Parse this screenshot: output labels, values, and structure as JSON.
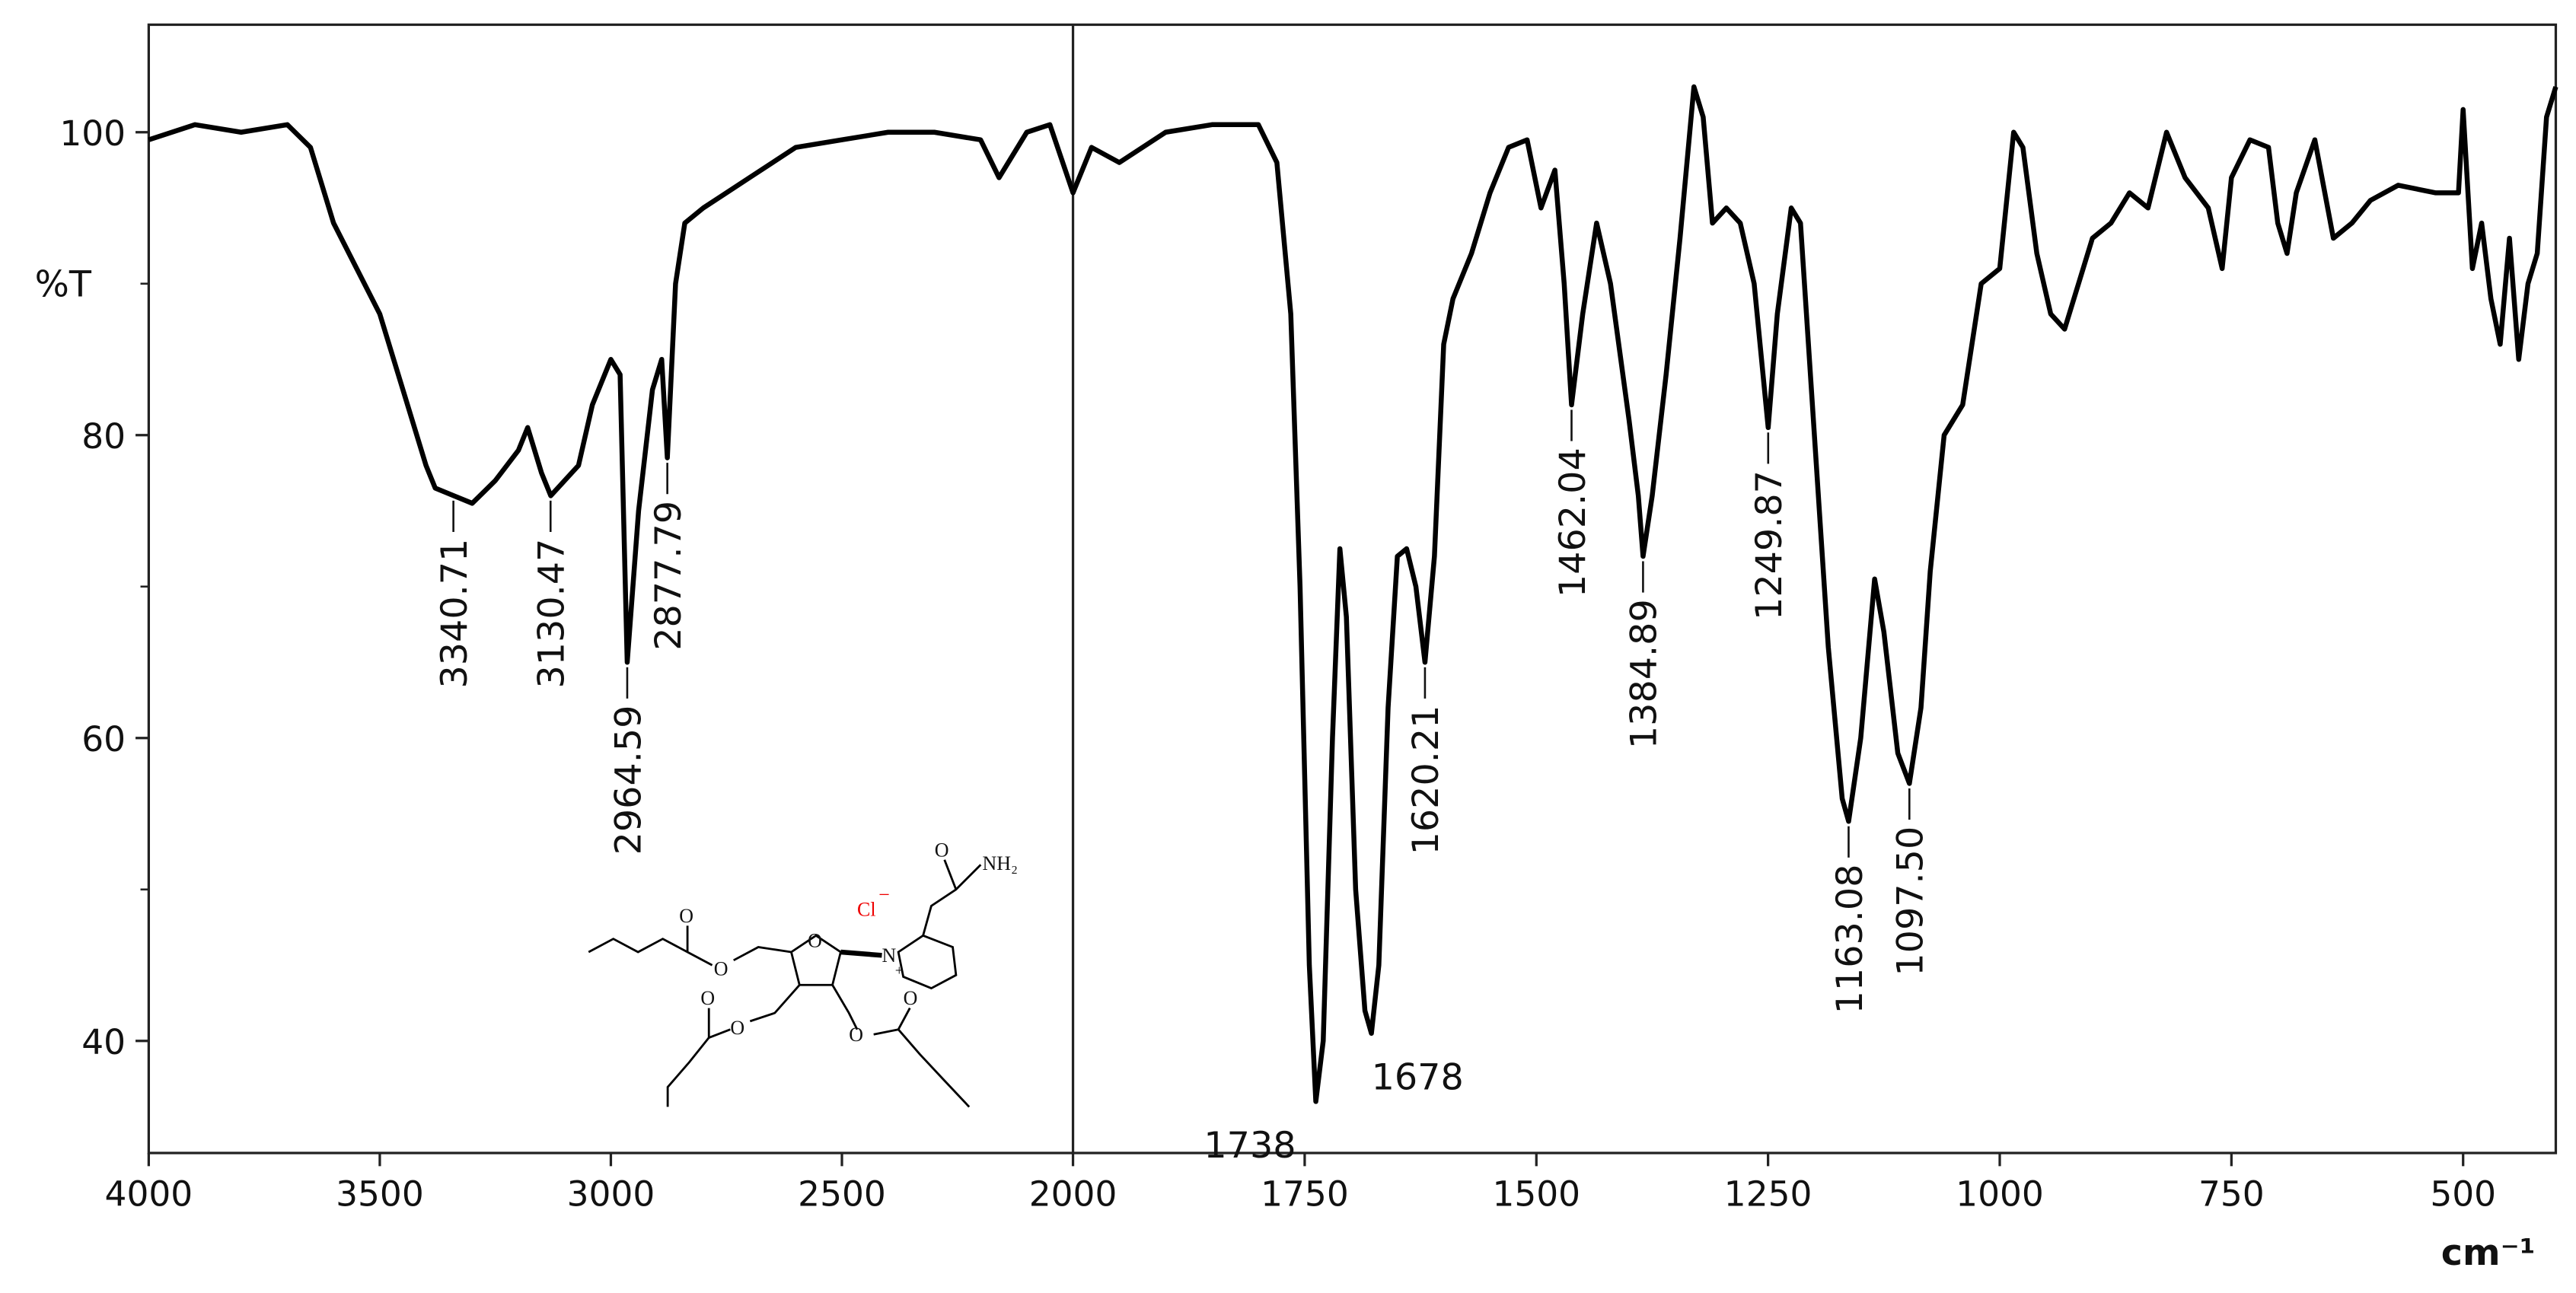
{
  "chart_data": {
    "type": "line",
    "ylabel": "%T",
    "xlabel": "cm⁻¹",
    "xlim": [
      4000,
      400
    ],
    "xbreak": 2000,
    "ylim": [
      32.6,
      107.1
    ],
    "xticks": [
      4000,
      3500,
      3000,
      2500,
      2000,
      1750,
      1500,
      1250,
      1000,
      750,
      500
    ],
    "yticks": [
      40,
      60,
      80,
      100
    ],
    "yminor": [
      50,
      70,
      90
    ],
    "x": [
      4000,
      3900,
      3800,
      3700,
      3650,
      3600,
      3550,
      3500,
      3450,
      3400,
      3380,
      3340,
      3300,
      3250,
      3200,
      3180,
      3150,
      3130,
      3100,
      3070,
      3040,
      3000,
      2980,
      2964.59,
      2940,
      2910,
      2890,
      2877.79,
      2860,
      2840,
      2800,
      2700,
      2600,
      2500,
      2400,
      2300,
      2200,
      2160,
      2100,
      2050,
      2000,
      1980,
      1950,
      1900,
      1850,
      1800,
      1780,
      1765,
      1755,
      1745,
      1738,
      1730,
      1720,
      1712,
      1705,
      1695,
      1685,
      1678,
      1670,
      1660,
      1650,
      1640,
      1630,
      1620.21,
      1610,
      1600,
      1590,
      1570,
      1550,
      1530,
      1510,
      1495,
      1480,
      1470,
      1462.04,
      1450,
      1435,
      1420,
      1400,
      1390,
      1384.89,
      1375,
      1360,
      1345,
      1330,
      1320,
      1310,
      1295,
      1280,
      1265,
      1249.87,
      1240,
      1225,
      1215,
      1200,
      1185,
      1170,
      1163.08,
      1150,
      1135,
      1125,
      1110,
      1097.5,
      1085,
      1075,
      1060,
      1040,
      1020,
      1000,
      985,
      975,
      960,
      945,
      930,
      915,
      900,
      880,
      860,
      840,
      820,
      800,
      775,
      760,
      750,
      730,
      710,
      700,
      690,
      680,
      660,
      640,
      620,
      600,
      570,
      530,
      505,
      500,
      490,
      480,
      470,
      460,
      450,
      440,
      430,
      420,
      410,
      400
    ],
    "series": [
      {
        "color": "#000000",
        "values": [
          99.5,
          100.5,
          100,
          100.5,
          99,
          94,
          91,
          88,
          83,
          78,
          76.5,
          76,
          75.5,
          77,
          79,
          80.5,
          77.5,
          76,
          77,
          78,
          82,
          85,
          84,
          65,
          75,
          83,
          85,
          78.5,
          90,
          94,
          95,
          97,
          99,
          99.5,
          100,
          100,
          99.5,
          97,
          100,
          100.5,
          96,
          99,
          98,
          100,
          100.5,
          100.5,
          98,
          88,
          70,
          45,
          36,
          40,
          60,
          72.5,
          68,
          50,
          42,
          40.5,
          45,
          62,
          72,
          72.5,
          70,
          65,
          72,
          86,
          89,
          92,
          96,
          99,
          99.5,
          95,
          97.5,
          90,
          82,
          88,
          94,
          90,
          81,
          76,
          72,
          76,
          84,
          93,
          103,
          101,
          94,
          95,
          94,
          90,
          80.5,
          88,
          95,
          94,
          80,
          66,
          56,
          54.5,
          60,
          70.5,
          67,
          59,
          57,
          62,
          71,
          80,
          82,
          90,
          91,
          100,
          99,
          92,
          88,
          87,
          90,
          93,
          94,
          96,
          95,
          100,
          97,
          95,
          91,
          97,
          99.5,
          99,
          94,
          92,
          96,
          99.5,
          93,
          94,
          95.5,
          96.5,
          96,
          96,
          101.5,
          91,
          94,
          89,
          86,
          93,
          85,
          90,
          92,
          101,
          103
        ]
      }
    ],
    "annotations": [
      {
        "x": 3340.71,
        "y": 76,
        "label": "3340.71",
        "rotated": true
      },
      {
        "x": 3130.47,
        "y": 76,
        "label": "3130.47",
        "rotated": true
      },
      {
        "x": 2964.59,
        "y": 65,
        "label": "2964.59",
        "rotated": true
      },
      {
        "x": 2877.79,
        "y": 78.5,
        "label": "2877.79",
        "rotated": true
      },
      {
        "x": 1738,
        "y": 36,
        "label": "1738",
        "rotated": false
      },
      {
        "x": 1678,
        "y": 40.5,
        "label": "1678",
        "rotated": false
      },
      {
        "x": 1620.21,
        "y": 65,
        "label": "1620.21",
        "rotated": true
      },
      {
        "x": 1462.04,
        "y": 82,
        "label": "1462.04",
        "rotated": true
      },
      {
        "x": 1384.89,
        "y": 72,
        "label": "1384.89",
        "rotated": true
      },
      {
        "x": 1249.87,
        "y": 80.5,
        "label": "1249.87",
        "rotated": true
      },
      {
        "x": 1163.08,
        "y": 54.5,
        "label": "1163.08",
        "rotated": true
      },
      {
        "x": 1097.5,
        "y": 57,
        "label": "1097.50",
        "rotated": true
      }
    ]
  },
  "structure": {
    "atoms": [
      "O",
      "O",
      "O",
      "O",
      "O",
      "O",
      "O",
      "O",
      "N",
      "Cl",
      "−",
      "NH₂",
      "+"
    ]
  }
}
